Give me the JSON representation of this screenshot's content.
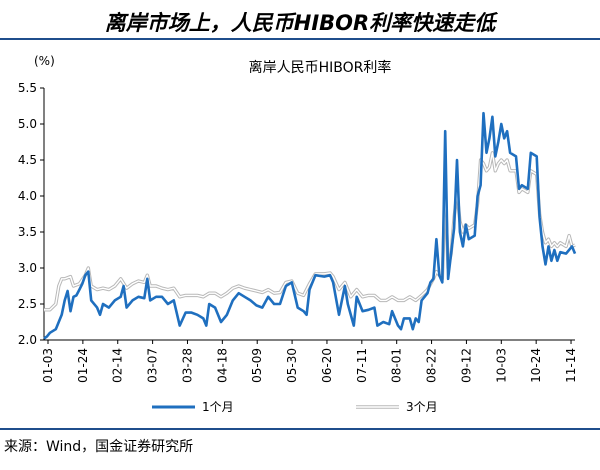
{
  "header": {
    "title": "离岸市场上，人民币HIBOR利率快速走低"
  },
  "footer": {
    "source": "来源：Wind，国金证券研究所"
  },
  "chart_data": {
    "type": "line",
    "title": "离岸人民币HIBOR利率",
    "unit_label": "(%)",
    "ylim": [
      2.0,
      5.5
    ],
    "y_ticks": [
      "2.0",
      "2.5",
      "3.0",
      "3.5",
      "4.0",
      "4.5",
      "5.0",
      "5.5"
    ],
    "x_tick_labels": [
      "01-03",
      "01-24",
      "02-14",
      "03-07",
      "03-28",
      "04-18",
      "05-09",
      "05-30",
      "06-20",
      "07-11",
      "08-01",
      "08-22",
      "09-12",
      "10-03",
      "10-24",
      "11-14"
    ],
    "grid": false,
    "legend_position": "bottom",
    "series": [
      {
        "name": "1个月",
        "color": "#1f6fbf",
        "points": [
          [
            0,
            2.02
          ],
          [
            1,
            2.05
          ],
          [
            2,
            2.1
          ],
          [
            4,
            2.15
          ],
          [
            6,
            2.35
          ],
          [
            7,
            2.55
          ],
          [
            8,
            2.68
          ],
          [
            9,
            2.4
          ],
          [
            10,
            2.6
          ],
          [
            11,
            2.62
          ],
          [
            12,
            2.7
          ],
          [
            13,
            2.78
          ],
          [
            14,
            2.9
          ],
          [
            15,
            2.95
          ],
          [
            16,
            2.55
          ],
          [
            18,
            2.45
          ],
          [
            19,
            2.35
          ],
          [
            20,
            2.5
          ],
          [
            22,
            2.45
          ],
          [
            24,
            2.55
          ],
          [
            26,
            2.6
          ],
          [
            27,
            2.75
          ],
          [
            28,
            2.45
          ],
          [
            30,
            2.55
          ],
          [
            32,
            2.6
          ],
          [
            34,
            2.58
          ],
          [
            35,
            2.85
          ],
          [
            36,
            2.55
          ],
          [
            38,
            2.6
          ],
          [
            40,
            2.6
          ],
          [
            42,
            2.5
          ],
          [
            44,
            2.55
          ],
          [
            46,
            2.2
          ],
          [
            48,
            2.38
          ],
          [
            50,
            2.38
          ],
          [
            52,
            2.35
          ],
          [
            54,
            2.3
          ],
          [
            55,
            2.2
          ],
          [
            56,
            2.5
          ],
          [
            58,
            2.45
          ],
          [
            60,
            2.25
          ],
          [
            62,
            2.35
          ],
          [
            64,
            2.55
          ],
          [
            66,
            2.65
          ],
          [
            68,
            2.6
          ],
          [
            70,
            2.55
          ],
          [
            72,
            2.48
          ],
          [
            74,
            2.45
          ],
          [
            76,
            2.6
          ],
          [
            78,
            2.5
          ],
          [
            80,
            2.5
          ],
          [
            82,
            2.75
          ],
          [
            84,
            2.8
          ],
          [
            86,
            2.45
          ],
          [
            88,
            2.4
          ],
          [
            89,
            2.35
          ],
          [
            90,
            2.7
          ],
          [
            92,
            2.9
          ],
          [
            95,
            2.88
          ],
          [
            97,
            2.9
          ],
          [
            98,
            2.8
          ],
          [
            100,
            2.35
          ],
          [
            101,
            2.55
          ],
          [
            102,
            2.75
          ],
          [
            103,
            2.5
          ],
          [
            105,
            2.2
          ],
          [
            106,
            2.6
          ],
          [
            108,
            2.4
          ],
          [
            110,
            2.42
          ],
          [
            112,
            2.45
          ],
          [
            113,
            2.2
          ],
          [
            115,
            2.25
          ],
          [
            117,
            2.22
          ],
          [
            118,
            2.4
          ],
          [
            120,
            2.2
          ],
          [
            121,
            2.15
          ],
          [
            122,
            2.3
          ],
          [
            124,
            2.3
          ],
          [
            125,
            2.15
          ],
          [
            126,
            2.3
          ],
          [
            127,
            2.25
          ],
          [
            128,
            2.55
          ],
          [
            130,
            2.65
          ],
          [
            131,
            2.8
          ],
          [
            132,
            2.85
          ],
          [
            133,
            3.4
          ],
          [
            134,
            2.9
          ],
          [
            135,
            2.8
          ],
          [
            136,
            4.9
          ],
          [
            137,
            2.85
          ],
          [
            138,
            3.2
          ],
          [
            139,
            3.55
          ],
          [
            140,
            4.5
          ],
          [
            141,
            3.5
          ],
          [
            142,
            3.3
          ],
          [
            143,
            3.6
          ],
          [
            144,
            3.4
          ],
          [
            146,
            3.45
          ],
          [
            147,
            4.0
          ],
          [
            148,
            4.15
          ],
          [
            149,
            5.15
          ],
          [
            150,
            4.6
          ],
          [
            151,
            4.8
          ],
          [
            152,
            5.1
          ],
          [
            153,
            4.55
          ],
          [
            154,
            4.75
          ],
          [
            155,
            5.0
          ],
          [
            156,
            4.8
          ],
          [
            157,
            4.9
          ],
          [
            158,
            4.6
          ],
          [
            160,
            4.55
          ],
          [
            161,
            4.1
          ],
          [
            162,
            4.15
          ],
          [
            164,
            4.1
          ],
          [
            165,
            4.6
          ],
          [
            167,
            4.55
          ],
          [
            168,
            3.7
          ],
          [
            169,
            3.3
          ],
          [
            170,
            3.05
          ],
          [
            171,
            3.3
          ],
          [
            172,
            3.1
          ],
          [
            173,
            3.25
          ],
          [
            174,
            3.1
          ],
          [
            175,
            3.22
          ],
          [
            177,
            3.2
          ],
          [
            179,
            3.3
          ],
          [
            180,
            3.2
          ]
        ]
      },
      {
        "name": "3个月",
        "color": "#b8b8b8",
        "points": [
          [
            0,
            2.42
          ],
          [
            2,
            2.42
          ],
          [
            4,
            2.5
          ],
          [
            5,
            2.75
          ],
          [
            6,
            2.85
          ],
          [
            7,
            2.85
          ],
          [
            9,
            2.88
          ],
          [
            10,
            2.75
          ],
          [
            12,
            2.78
          ],
          [
            14,
            2.9
          ],
          [
            15,
            3.0
          ],
          [
            16,
            2.75
          ],
          [
            18,
            2.7
          ],
          [
            20,
            2.72
          ],
          [
            22,
            2.7
          ],
          [
            24,
            2.75
          ],
          [
            26,
            2.85
          ],
          [
            28,
            2.72
          ],
          [
            30,
            2.78
          ],
          [
            32,
            2.82
          ],
          [
            34,
            2.8
          ],
          [
            35,
            2.9
          ],
          [
            36,
            2.75
          ],
          [
            38,
            2.75
          ],
          [
            40,
            2.72
          ],
          [
            42,
            2.7
          ],
          [
            44,
            2.72
          ],
          [
            46,
            2.6
          ],
          [
            48,
            2.62
          ],
          [
            50,
            2.62
          ],
          [
            52,
            2.62
          ],
          [
            54,
            2.6
          ],
          [
            56,
            2.65
          ],
          [
            58,
            2.65
          ],
          [
            60,
            2.6
          ],
          [
            62,
            2.65
          ],
          [
            64,
            2.72
          ],
          [
            66,
            2.75
          ],
          [
            68,
            2.72
          ],
          [
            70,
            2.7
          ],
          [
            72,
            2.68
          ],
          [
            74,
            2.66
          ],
          [
            76,
            2.7
          ],
          [
            78,
            2.65
          ],
          [
            80,
            2.66
          ],
          [
            82,
            2.8
          ],
          [
            84,
            2.82
          ],
          [
            86,
            2.65
          ],
          [
            88,
            2.62
          ],
          [
            90,
            2.78
          ],
          [
            92,
            2.92
          ],
          [
            95,
            2.92
          ],
          [
            97,
            2.93
          ],
          [
            98,
            2.88
          ],
          [
            100,
            2.7
          ],
          [
            102,
            2.8
          ],
          [
            104,
            2.6
          ],
          [
            106,
            2.7
          ],
          [
            108,
            2.6
          ],
          [
            110,
            2.62
          ],
          [
            112,
            2.62
          ],
          [
            114,
            2.55
          ],
          [
            116,
            2.55
          ],
          [
            118,
            2.6
          ],
          [
            120,
            2.55
          ],
          [
            122,
            2.55
          ],
          [
            124,
            2.6
          ],
          [
            126,
            2.55
          ],
          [
            128,
            2.62
          ],
          [
            130,
            2.7
          ],
          [
            132,
            2.85
          ],
          [
            133,
            2.95
          ],
          [
            134,
            2.9
          ],
          [
            135,
            2.85
          ],
          [
            136,
            4.1
          ],
          [
            137,
            3.0
          ],
          [
            138,
            3.2
          ],
          [
            139,
            3.7
          ],
          [
            140,
            4.05
          ],
          [
            141,
            3.65
          ],
          [
            142,
            3.5
          ],
          [
            143,
            3.6
          ],
          [
            144,
            3.55
          ],
          [
            146,
            3.6
          ],
          [
            147,
            3.9
          ],
          [
            148,
            4.5
          ],
          [
            149,
            4.45
          ],
          [
            150,
            4.35
          ],
          [
            151,
            4.4
          ],
          [
            152,
            4.6
          ],
          [
            153,
            4.35
          ],
          [
            154,
            4.45
          ],
          [
            155,
            4.5
          ],
          [
            156,
            4.45
          ],
          [
            157,
            4.5
          ],
          [
            158,
            4.35
          ],
          [
            160,
            4.35
          ],
          [
            161,
            4.05
          ],
          [
            162,
            4.1
          ],
          [
            164,
            4.05
          ],
          [
            165,
            4.35
          ],
          [
            167,
            4.3
          ],
          [
            168,
            3.75
          ],
          [
            169,
            3.5
          ],
          [
            170,
            3.35
          ],
          [
            171,
            3.4
          ],
          [
            172,
            3.3
          ],
          [
            173,
            3.35
          ],
          [
            174,
            3.3
          ],
          [
            175,
            3.35
          ],
          [
            177,
            3.3
          ],
          [
            178,
            3.45
          ],
          [
            179,
            3.3
          ],
          [
            180,
            3.32
          ]
        ]
      }
    ]
  }
}
